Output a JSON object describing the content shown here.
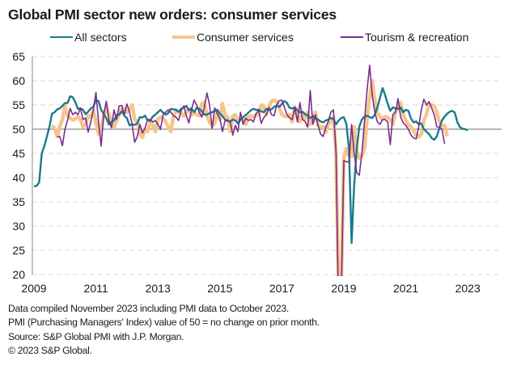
{
  "chart_data": {
    "type": "line",
    "title": "Global PMI sector new orders: consumer services",
    "xlabel": "",
    "ylabel": "",
    "ylim": [
      20,
      65
    ],
    "yticks": [
      "65",
      "60",
      "55",
      "50",
      "45",
      "40",
      "35",
      "30",
      "25",
      "20"
    ],
    "xticks": [
      "2009",
      "2011",
      "2013",
      "2015",
      "2017",
      "2019",
      "2021",
      "2023"
    ],
    "x_start": "2009-01",
    "x_end": "2023-10",
    "grid": true,
    "reference_line": 50,
    "legend_position": "top",
    "series": [
      {
        "name": "All sectors",
        "color": "#1a7a8c",
        "start_month_index": 0,
        "values": [
          38.2,
          38.3,
          39.0,
          45.0,
          46.5,
          48.5,
          50.5,
          53.2,
          53.5,
          54.1,
          54.3,
          54.8,
          55.4,
          55.4,
          56.8,
          56.6,
          55.6,
          54.2,
          54.3,
          54.0,
          53.1,
          53.6,
          54.3,
          54.6,
          56.0,
          55.8,
          54.0,
          53.2,
          52.3,
          51.0,
          51.5,
          51.8,
          52.9,
          53.0,
          53.7,
          52.8,
          52.3,
          50.8,
          51.0,
          50.9,
          51.2,
          52.5,
          52.4,
          52.8,
          51.9,
          51.7,
          52.6,
          53.0,
          53.5,
          54.0,
          53.4,
          53.0,
          53.3,
          54.2,
          54.1,
          54.0,
          53.6,
          54.2,
          54.5,
          54.8,
          53.9,
          54.3,
          53.5,
          54.4,
          54.2,
          53.7,
          53.0,
          53.0,
          53.3,
          53.5,
          53.8,
          54.0,
          53.2,
          52.7,
          52.0,
          51.8,
          51.6,
          52.0,
          51.8,
          51.2,
          52.0,
          52.5,
          52.9,
          53.4,
          53.9,
          54.2,
          54.0,
          54.0,
          53.7,
          53.5,
          54.2,
          54.0,
          54.1,
          54.6,
          54.9,
          54.6,
          55.2,
          55.8,
          55.4,
          54.4,
          54.3,
          54.5,
          53.9,
          53.5,
          53.6,
          53.1,
          52.8,
          52.3,
          52.7,
          52.2,
          52.0,
          51.6,
          51.4,
          51.8,
          52.0,
          52.3,
          52.1,
          51.0,
          51.8,
          52.3,
          52.5,
          51.0,
          46.0,
          26.5,
          38.5,
          46.0,
          50.5,
          52.0,
          52.6,
          52.8,
          52.5,
          52.3,
          53.0,
          54.5,
          56.5,
          58.5,
          57.0,
          55.2,
          53.8,
          54.5,
          54.3,
          54.2,
          54.5,
          53.5,
          54.0,
          53.8,
          52.2,
          51.4,
          51.6,
          51.0,
          51.2,
          50.0,
          49.5,
          49.0,
          48.2,
          47.8,
          48.5,
          50.2,
          51.8,
          52.6,
          53.2,
          53.6,
          53.8,
          53.4,
          51.4,
          50.4,
          50.1,
          50.0,
          49.8
        ]
      },
      {
        "name": "Consumer services",
        "color": "#f5c58a",
        "start_month_index": 7,
        "values": [
          50.8,
          50.2,
          48.5,
          50.5,
          52.0,
          54.8,
          52.8,
          52.3,
          51.9,
          52.1,
          52.6,
          52.0,
          50.5,
          51.0,
          52.8,
          52.5,
          53.8,
          51.5,
          49.0,
          50.0,
          53.0,
          54.5,
          53.0,
          51.8,
          50.3,
          51.8,
          53.0,
          54.2,
          54.3,
          53.5,
          54.0,
          55.0,
          52.0,
          51.6,
          49.0,
          48.3,
          50.0,
          49.5,
          51.5,
          50.8,
          49.5,
          52.0,
          52.5,
          52.3,
          51.5,
          50.5,
          49.5,
          52.5,
          54.0,
          53.5,
          53.2,
          52.7,
          53.5,
          54.2,
          52.9,
          53.5,
          53.0,
          52.8,
          55.3,
          55.6,
          52.8,
          51.5,
          50.6,
          51.2,
          53.5,
          52.0,
          55.3,
          53.0,
          52.5,
          49.5,
          52.7,
          53.0,
          51.5,
          52.0,
          52.0,
          51.0,
          52.5,
          52.8,
          52.5,
          53.0,
          53.0,
          55.0,
          54.8,
          53.0,
          54.5,
          55.8,
          56.0,
          55.7,
          54.5,
          53.0,
          52.7,
          52.6,
          53.0,
          51.5,
          54.5,
          52.8,
          51.5,
          53.5,
          52.2,
          53.5,
          51.0,
          51.5,
          53.5,
          50.8,
          50.4,
          50.5,
          49.4,
          51.0,
          51.5,
          52.5,
          45.0,
          15.0,
          18.0,
          44.0,
          46.0,
          44.5,
          44.4,
          50.5,
          45.5,
          44.0,
          44.5,
          46.0,
          52.2,
          56.5,
          60.0,
          56.0,
          53.5,
          52.6,
          52.0,
          52.6,
          52.4,
          52.0,
          51.0,
          53.5,
          54.5,
          55.5,
          53.0,
          51.8,
          51.0,
          50.5,
          49.6,
          48.8,
          48.4,
          49.0,
          51.8,
          53.0,
          55.2,
          55.0,
          54.8,
          53.5,
          51.5,
          50.6,
          50.8,
          48.5
        ]
      },
      {
        "name": "Tourism & recreation",
        "color": "#7b2d8e",
        "start_month_index": 9,
        "values": [
          48.4,
          48.5,
          46.6,
          50.0,
          51.8,
          54.3,
          53.0,
          53.5,
          53.0,
          54.4,
          52.0,
          52.3,
          49.4,
          51.5,
          54.0,
          57.6,
          51.5,
          46.5,
          53.0,
          55.8,
          51.8,
          50.3,
          54.0,
          52.0,
          54.8,
          54.9,
          53.0,
          55.2,
          53.5,
          51.0,
          47.3,
          48.5,
          51.0,
          49.2,
          50.2,
          52.0,
          52.0,
          51.5,
          51.8,
          51.0,
          50.0,
          53.0,
          53.5,
          54.0,
          53.5,
          52.8,
          52.5,
          51.8,
          53.8,
          54.8,
          52.8,
          51.3,
          54.0,
          56.0,
          55.0,
          53.5,
          52.5,
          54.5,
          57.5,
          55.0,
          50.2,
          54.4,
          53.2,
          52.2,
          49.5,
          51.8,
          51.7,
          51.5,
          48.8,
          50.8,
          49.5,
          53.5,
          51.0,
          52.3,
          51.8,
          52.0,
          51.5,
          53.2,
          53.9,
          51.2,
          52.4,
          53.0,
          54.5,
          53.0,
          52.8,
          55.0,
          55.9,
          56.0,
          54.5,
          53.0,
          52.3,
          52.0,
          54.5,
          51.5,
          55.5,
          52.0,
          51.6,
          50.4,
          58.0,
          51.0,
          53.0,
          50.8,
          49.0,
          48.5,
          50.4,
          51.6,
          53.5,
          54.0,
          45.0,
          10.0,
          15.0,
          43.5,
          43.3,
          43.2,
          51.0,
          45.0,
          41.0,
          40.5,
          45.0,
          51.5,
          58.0,
          63.2,
          57.0,
          53.5,
          51.5,
          51.0,
          52.0,
          52.0,
          51.5,
          46.8,
          53.0,
          53.5,
          56.3,
          52.5,
          51.3,
          50.8,
          50.0,
          48.8,
          48.2,
          48.0,
          50.5,
          54.0,
          56.2,
          55.0,
          55.7,
          54.4,
          53.0,
          50.5,
          50.4,
          50.0,
          47.0
        ]
      }
    ]
  },
  "legend": [
    {
      "label": "All sectors"
    },
    {
      "label": "Consumer services"
    },
    {
      "label": "Tourism & recreation"
    }
  ],
  "footer": {
    "line1": "Data compiled November 2023 including PMI data to October 2023.",
    "line2": "PMI (Purchasing Managers' Index) value of 50 = no change on prior month.",
    "line3": "Source: S&P Global PMI with J.P. Morgan.",
    "line4": "© 2023 S&P Global."
  }
}
